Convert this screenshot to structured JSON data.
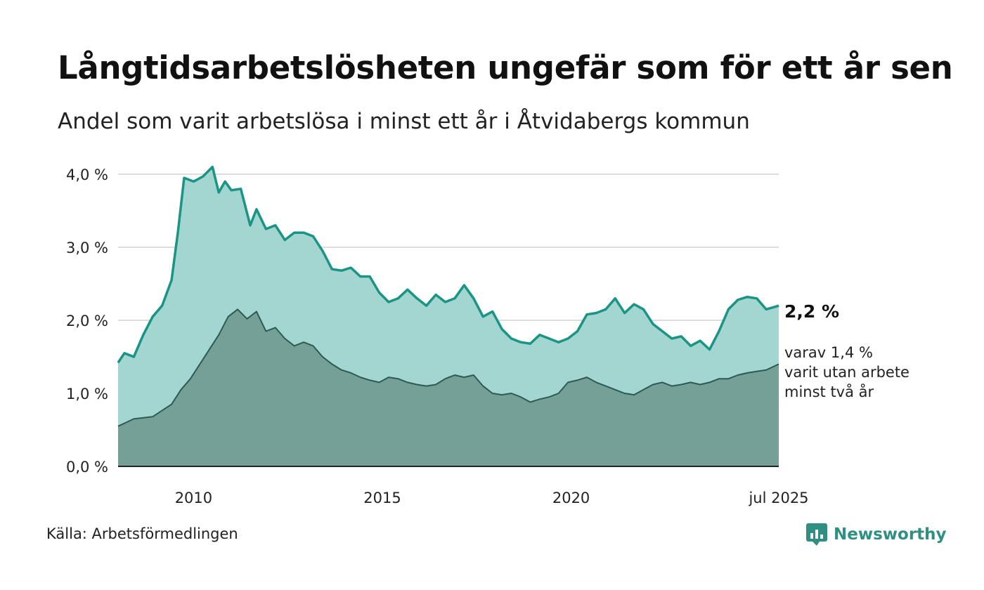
{
  "title": "Långtidsarbetslösheten ungefär som för ett år sen",
  "subtitle": "Andel som varit arbetslösa i minst ett år i Åtvidabergs kommun",
  "source": "Källa: Arbetsförmedlingen",
  "logo": {
    "name": "Newsworthy",
    "icon": "newsworthy-chart-icon"
  },
  "colors": {
    "upper_fill": "#a3d6d0",
    "upper_line": "#1a9484",
    "lower_fill": "#74a098",
    "lower_line": "#2d5a53",
    "grid": "#dddddd",
    "logo": "#2f8f82"
  },
  "chart_data": {
    "type": "area",
    "x_range": [
      "2008-01",
      "2025-07"
    ],
    "ylim": [
      0,
      4
    ],
    "y_ticks": [
      {
        "value": 0,
        "label": "0,0 %"
      },
      {
        "value": 1,
        "label": "1,0 %"
      },
      {
        "value": 2,
        "label": "2,0 %"
      },
      {
        "value": 3,
        "label": "3,0 %"
      },
      {
        "value": 4,
        "label": "4,0 %"
      }
    ],
    "x_ticks": [
      {
        "date": "2010-01",
        "label": "2010"
      },
      {
        "date": "2015-01",
        "label": "2015"
      },
      {
        "date": "2020-01",
        "label": "2020"
      },
      {
        "date": "2025-07",
        "label": "jul 2025"
      }
    ],
    "grid": true,
    "series": [
      {
        "label": "2,2 %",
        "points": [
          [
            "2008-01",
            1.42
          ],
          [
            "2008-03",
            1.55
          ],
          [
            "2008-06",
            1.5
          ],
          [
            "2008-09",
            1.8
          ],
          [
            "2008-12",
            2.05
          ],
          [
            "2009-03",
            2.2
          ],
          [
            "2009-06",
            2.55
          ],
          [
            "2009-08",
            3.2
          ],
          [
            "2009-10",
            3.95
          ],
          [
            "2010-01",
            3.9
          ],
          [
            "2010-04",
            3.97
          ],
          [
            "2010-07",
            4.1
          ],
          [
            "2010-09",
            3.75
          ],
          [
            "2010-11",
            3.9
          ],
          [
            "2011-01",
            3.78
          ],
          [
            "2011-04",
            3.8
          ],
          [
            "2011-07",
            3.3
          ],
          [
            "2011-09",
            3.52
          ],
          [
            "2011-12",
            3.25
          ],
          [
            "2012-03",
            3.3
          ],
          [
            "2012-06",
            3.1
          ],
          [
            "2012-09",
            3.2
          ],
          [
            "2012-12",
            3.2
          ],
          [
            "2013-03",
            3.15
          ],
          [
            "2013-06",
            2.95
          ],
          [
            "2013-09",
            2.7
          ],
          [
            "2013-12",
            2.68
          ],
          [
            "2014-03",
            2.72
          ],
          [
            "2014-06",
            2.6
          ],
          [
            "2014-09",
            2.6
          ],
          [
            "2014-12",
            2.38
          ],
          [
            "2015-03",
            2.25
          ],
          [
            "2015-06",
            2.3
          ],
          [
            "2015-09",
            2.42
          ],
          [
            "2015-12",
            2.3
          ],
          [
            "2016-03",
            2.2
          ],
          [
            "2016-06",
            2.35
          ],
          [
            "2016-09",
            2.25
          ],
          [
            "2016-12",
            2.3
          ],
          [
            "2017-03",
            2.48
          ],
          [
            "2017-06",
            2.3
          ],
          [
            "2017-09",
            2.05
          ],
          [
            "2017-12",
            2.12
          ],
          [
            "2018-03",
            1.88
          ],
          [
            "2018-06",
            1.75
          ],
          [
            "2018-09",
            1.7
          ],
          [
            "2018-12",
            1.68
          ],
          [
            "2019-03",
            1.8
          ],
          [
            "2019-06",
            1.75
          ],
          [
            "2019-09",
            1.7
          ],
          [
            "2019-12",
            1.75
          ],
          [
            "2020-03",
            1.85
          ],
          [
            "2020-06",
            2.08
          ],
          [
            "2020-09",
            2.1
          ],
          [
            "2020-12",
            2.15
          ],
          [
            "2021-03",
            2.3
          ],
          [
            "2021-06",
            2.1
          ],
          [
            "2021-09",
            2.22
          ],
          [
            "2021-12",
            2.15
          ],
          [
            "2022-03",
            1.95
          ],
          [
            "2022-06",
            1.85
          ],
          [
            "2022-09",
            1.75
          ],
          [
            "2022-12",
            1.78
          ],
          [
            "2023-03",
            1.65
          ],
          [
            "2023-06",
            1.72
          ],
          [
            "2023-09",
            1.6
          ],
          [
            "2023-12",
            1.85
          ],
          [
            "2024-03",
            2.15
          ],
          [
            "2024-06",
            2.28
          ],
          [
            "2024-09",
            2.32
          ],
          [
            "2024-12",
            2.3
          ],
          [
            "2025-03",
            2.15
          ],
          [
            "2025-07",
            2.2
          ]
        ]
      },
      {
        "label_lines": [
          "varav 1,4 %",
          "varit utan arbete",
          "minst två år"
        ],
        "points": [
          [
            "2008-01",
            0.55
          ],
          [
            "2008-06",
            0.65
          ],
          [
            "2008-12",
            0.68
          ],
          [
            "2009-06",
            0.85
          ],
          [
            "2009-09",
            1.05
          ],
          [
            "2009-12",
            1.2
          ],
          [
            "2010-03",
            1.4
          ],
          [
            "2010-06",
            1.6
          ],
          [
            "2010-09",
            1.8
          ],
          [
            "2010-12",
            2.05
          ],
          [
            "2011-03",
            2.15
          ],
          [
            "2011-06",
            2.02
          ],
          [
            "2011-09",
            2.12
          ],
          [
            "2011-12",
            1.85
          ],
          [
            "2012-03",
            1.9
          ],
          [
            "2012-06",
            1.75
          ],
          [
            "2012-09",
            1.65
          ],
          [
            "2012-12",
            1.7
          ],
          [
            "2013-03",
            1.65
          ],
          [
            "2013-06",
            1.5
          ],
          [
            "2013-09",
            1.4
          ],
          [
            "2013-12",
            1.32
          ],
          [
            "2014-03",
            1.28
          ],
          [
            "2014-06",
            1.22
          ],
          [
            "2014-09",
            1.18
          ],
          [
            "2014-12",
            1.15
          ],
          [
            "2015-03",
            1.22
          ],
          [
            "2015-06",
            1.2
          ],
          [
            "2015-09",
            1.15
          ],
          [
            "2015-12",
            1.12
          ],
          [
            "2016-03",
            1.1
          ],
          [
            "2016-06",
            1.12
          ],
          [
            "2016-09",
            1.2
          ],
          [
            "2016-12",
            1.25
          ],
          [
            "2017-03",
            1.22
          ],
          [
            "2017-06",
            1.25
          ],
          [
            "2017-09",
            1.1
          ],
          [
            "2017-12",
            1.0
          ],
          [
            "2018-03",
            0.98
          ],
          [
            "2018-06",
            1.0
          ],
          [
            "2018-09",
            0.95
          ],
          [
            "2018-12",
            0.88
          ],
          [
            "2019-03",
            0.92
          ],
          [
            "2019-06",
            0.95
          ],
          [
            "2019-09",
            1.0
          ],
          [
            "2019-12",
            1.15
          ],
          [
            "2020-03",
            1.18
          ],
          [
            "2020-06",
            1.22
          ],
          [
            "2020-09",
            1.15
          ],
          [
            "2020-12",
            1.1
          ],
          [
            "2021-03",
            1.05
          ],
          [
            "2021-06",
            1.0
          ],
          [
            "2021-09",
            0.98
          ],
          [
            "2021-12",
            1.05
          ],
          [
            "2022-03",
            1.12
          ],
          [
            "2022-06",
            1.15
          ],
          [
            "2022-09",
            1.1
          ],
          [
            "2022-12",
            1.12
          ],
          [
            "2023-03",
            1.15
          ],
          [
            "2023-06",
            1.12
          ],
          [
            "2023-09",
            1.15
          ],
          [
            "2023-12",
            1.2
          ],
          [
            "2024-03",
            1.2
          ],
          [
            "2024-06",
            1.25
          ],
          [
            "2024-09",
            1.28
          ],
          [
            "2024-12",
            1.3
          ],
          [
            "2025-03",
            1.32
          ],
          [
            "2025-07",
            1.4
          ]
        ]
      }
    ]
  }
}
